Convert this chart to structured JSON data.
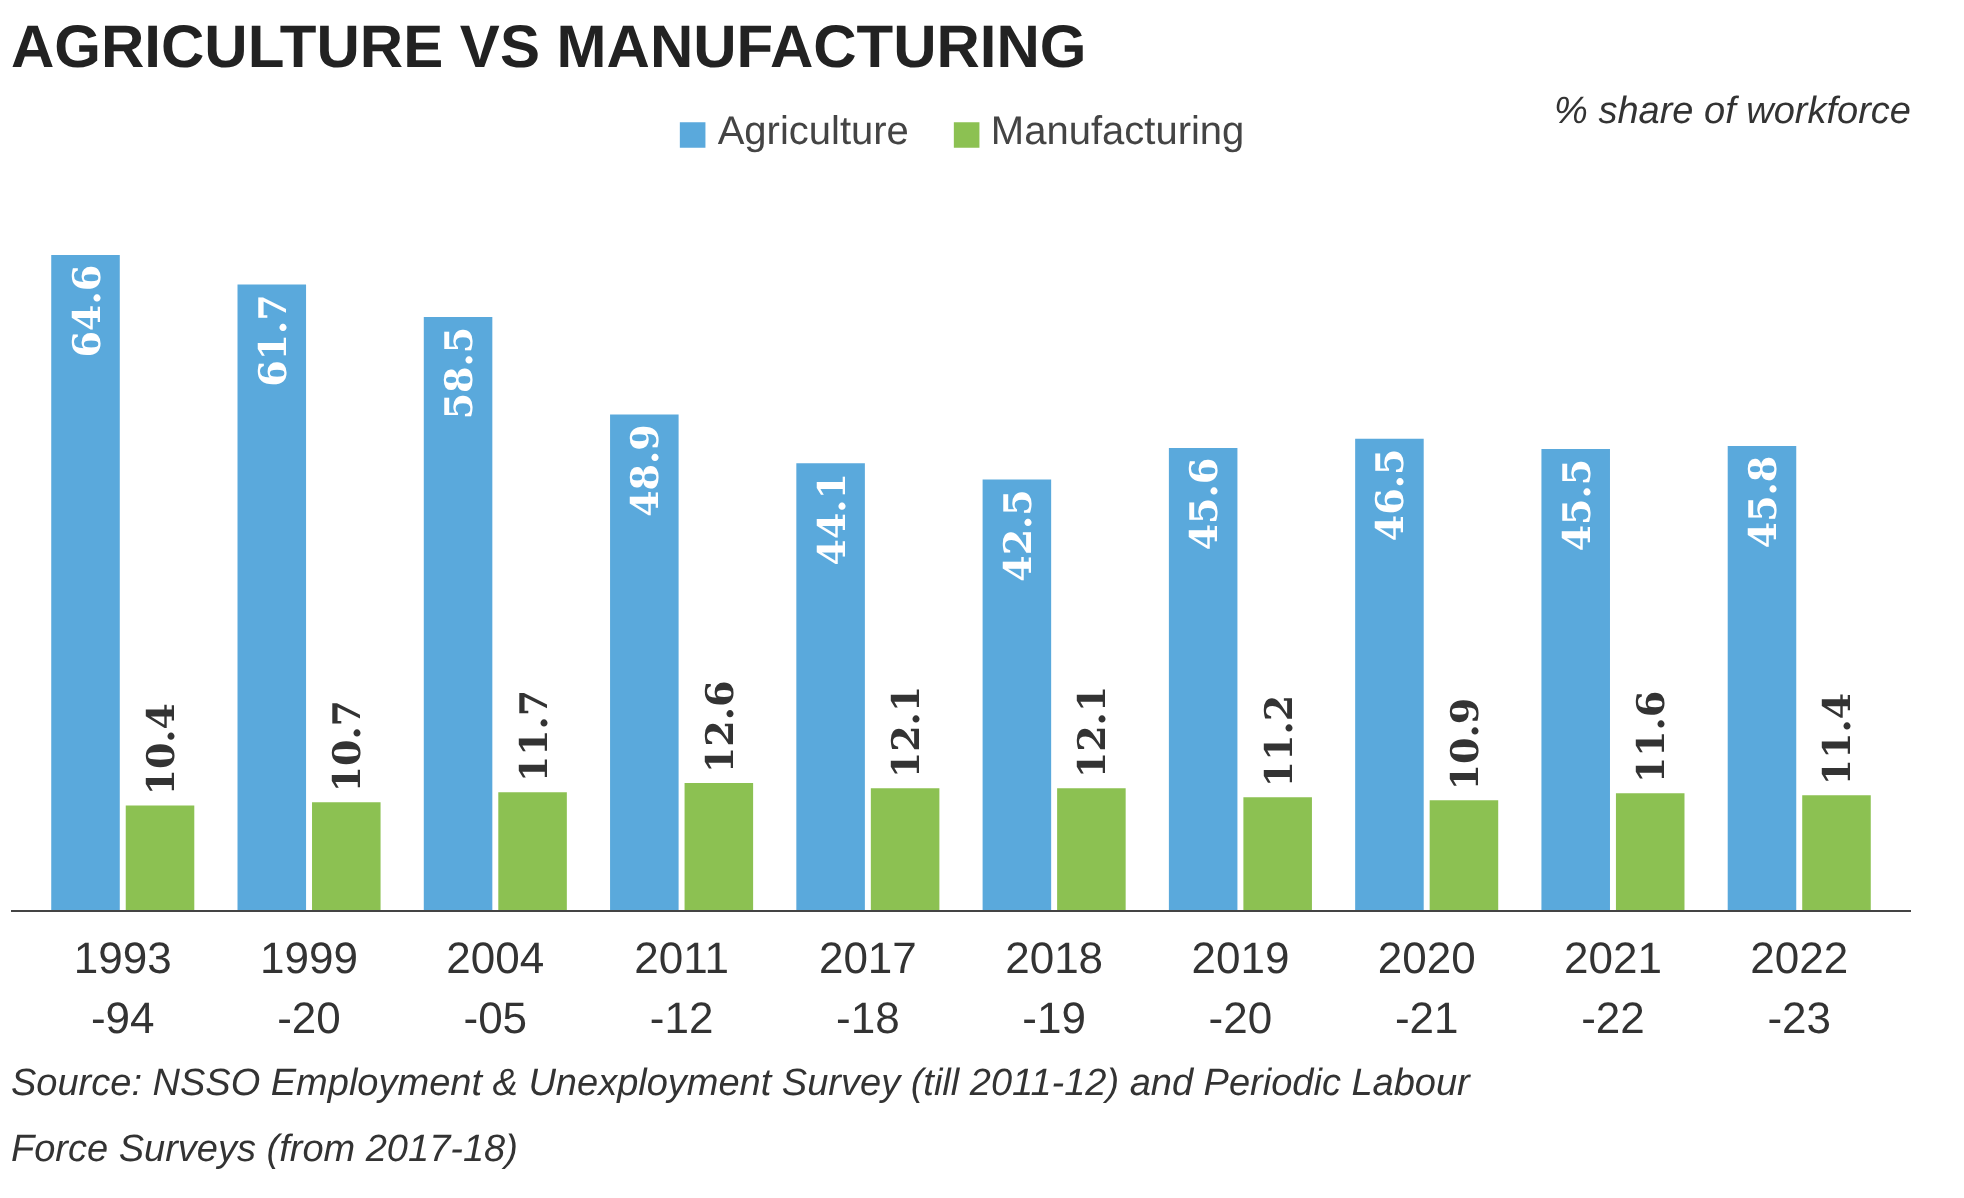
{
  "chart_data": {
    "type": "bar",
    "title": "AGRICULTURE VS MANUFACTURING",
    "categories": [
      "1993\n-94",
      "1999\n-20",
      "2004\n-05",
      "2011\n-12",
      "2017\n-18",
      "2018\n-19",
      "2019\n-20",
      "2020\n-21",
      "2021\n-22",
      "2022\n-23"
    ],
    "series": [
      {
        "name": "Agriculture",
        "color": "#5aa9dc",
        "values": [
          64.6,
          61.7,
          58.5,
          48.9,
          44.1,
          42.5,
          45.6,
          46.5,
          45.5,
          45.8
        ]
      },
      {
        "name": "Manufacturing",
        "color": "#8cc152",
        "values": [
          10.4,
          10.7,
          11.7,
          12.6,
          12.1,
          12.1,
          11.2,
          10.9,
          11.6,
          11.4
        ]
      }
    ],
    "data_labels": true,
    "legend": "top",
    "grid": false,
    "annotations": [
      "% share of workforce",
      "Source: NSSO Employment & Unexployment Survey (till 2011-12) and Periodic Labour Force Surveys (from 2017-18)"
    ]
  }
}
